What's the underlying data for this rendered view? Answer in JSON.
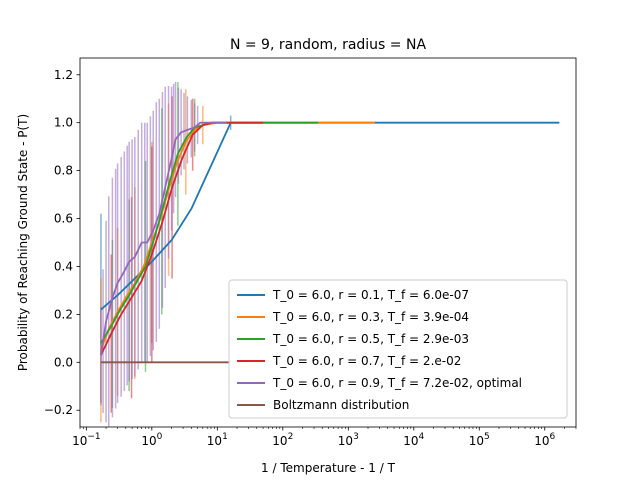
{
  "chart_data": {
    "type": "line",
    "title": "N = 9, random, radius = NA",
    "xlabel": "1 / Temperature - 1 / T",
    "ylabel": "Probability of Reaching Ground State - P(T)",
    "xscale": "log",
    "xlim": [
      0.08,
      3000000
    ],
    "ylim": [
      -0.27,
      1.27
    ],
    "x_ticks": [
      {
        "value": 0.1,
        "base": "10",
        "exp": "−1"
      },
      {
        "value": 1,
        "base": "10",
        "exp": "0"
      },
      {
        "value": 10,
        "base": "10",
        "exp": "1"
      },
      {
        "value": 100,
        "base": "10",
        "exp": "2"
      },
      {
        "value": 1000,
        "base": "10",
        "exp": "3"
      },
      {
        "value": 10000,
        "base": "10",
        "exp": "4"
      },
      {
        "value": 100000,
        "base": "10",
        "exp": "5"
      },
      {
        "value": 1000000,
        "base": "10",
        "exp": "6"
      }
    ],
    "y_ticks": [
      {
        "value": -0.2,
        "label": "−0.2"
      },
      {
        "value": 0.0,
        "label": "0.0"
      },
      {
        "value": 0.2,
        "label": "0.2"
      },
      {
        "value": 0.4,
        "label": "0.4"
      },
      {
        "value": 0.6,
        "label": "0.6"
      },
      {
        "value": 0.8,
        "label": "0.8"
      },
      {
        "value": 1.0,
        "label": "1.0"
      },
      {
        "value": 1.2,
        "label": "1.2"
      }
    ],
    "legend_position": "lower-right",
    "series": [
      {
        "name": "T_0 = 6.0, r = 0.1, T_f = 6.0e-07",
        "color": "#1f77b4",
        "x": [
          0.167,
          0.3,
          0.6,
          1,
          2,
          4,
          8,
          16,
          30,
          100,
          1000,
          10000,
          100000,
          1670000
        ],
        "y": [
          0.22,
          0.28,
          0.36,
          0.42,
          0.51,
          0.64,
          0.82,
          1.0,
          1.0,
          1.0,
          1.0,
          1.0,
          1.0,
          1.0
        ],
        "err_x": [
          0.167,
          16
        ],
        "err_half": [
          0.4,
          0.03
        ]
      },
      {
        "name": "T_0 = 6.0, r = 0.3, T_f = 3.9e-04",
        "color": "#ff7f0e",
        "x": [
          0.167,
          0.22,
          0.3,
          0.4,
          0.55,
          0.75,
          1,
          1.35,
          1.8,
          2.4,
          3.3,
          4.5,
          6,
          10,
          100,
          1000,
          2560
        ],
        "y": [
          0.05,
          0.14,
          0.21,
          0.27,
          0.33,
          0.4,
          0.5,
          0.6,
          0.72,
          0.83,
          0.92,
          0.97,
          0.99,
          1.0,
          1.0,
          1.0,
          1.0
        ],
        "err_x": [
          0.167,
          0.3,
          0.55,
          1,
          1.8,
          3.3,
          6
        ],
        "err_half": [
          0.3,
          0.35,
          0.4,
          0.42,
          0.36,
          0.22,
          0.08
        ]
      },
      {
        "name": "T_0 = 6.0, r = 0.5, T_f = 2.9e-03",
        "color": "#2ca02c",
        "x": [
          0.167,
          0.25,
          0.33,
          0.45,
          0.6,
          0.8,
          1.07,
          1.42,
          1.9,
          2.5,
          3.4,
          4.5,
          6,
          8,
          20,
          100,
          345
        ],
        "y": [
          0.08,
          0.16,
          0.22,
          0.28,
          0.34,
          0.4,
          0.51,
          0.63,
          0.76,
          0.87,
          0.94,
          0.98,
          0.99,
          1.0,
          1.0,
          1.0,
          1.0
        ],
        "err_x": [
          0.25,
          0.45,
          0.8,
          1.42,
          2.5,
          4.5
        ],
        "err_half": [
          0.35,
          0.4,
          0.44,
          0.43,
          0.3,
          0.12
        ]
      },
      {
        "name": "T_0 = 6.0, r = 0.7, T_f = 2.e-02",
        "color": "#d62728",
        "x": [
          0.167,
          0.24,
          0.34,
          0.49,
          0.7,
          1,
          1.43,
          2.04,
          2.9,
          4.2,
          6,
          8.5,
          12.2,
          17.4,
          50
        ],
        "y": [
          0.03,
          0.12,
          0.2,
          0.27,
          0.34,
          0.45,
          0.58,
          0.73,
          0.85,
          0.95,
          0.99,
          1.0,
          1.0,
          1.0,
          1.0
        ],
        "err_x": [
          0.24,
          0.49,
          1,
          2.04,
          4.2
        ],
        "err_half": [
          0.33,
          0.42,
          0.45,
          0.38,
          0.15
        ]
      },
      {
        "name": "T_0 = 6.0, r = 0.9, T_f = 7.2e-02, optimal",
        "color": "#9467bd",
        "x": [
          0.167,
          0.2,
          0.25,
          0.3,
          0.38,
          0.45,
          0.55,
          0.7,
          0.85,
          1.05,
          1.3,
          1.6,
          2,
          2.3,
          2.8,
          3.5,
          4.5,
          5.5,
          7,
          9,
          11,
          13.9
        ],
        "y": [
          0.03,
          0.17,
          0.27,
          0.33,
          0.38,
          0.42,
          0.44,
          0.5,
          0.5,
          0.55,
          0.62,
          0.73,
          0.85,
          0.93,
          0.96,
          0.97,
          0.98,
          1.0,
          1.0,
          1.0,
          1.0,
          1.0
        ],
        "err_x": [
          0.167,
          0.18,
          0.2,
          0.22,
          0.25,
          0.28,
          0.3,
          0.34,
          0.38,
          0.42,
          0.45,
          0.5,
          0.55,
          0.62,
          0.7,
          0.78,
          0.85,
          0.95,
          1.05,
          1.17,
          1.3,
          1.45,
          1.6,
          1.8,
          2,
          2.15,
          2.3,
          2.55,
          2.8,
          3.1,
          3.5,
          4,
          4.5,
          5
        ],
        "err_half": [
          0.2,
          0.3,
          0.42,
          0.48,
          0.5,
          0.5,
          0.5,
          0.5,
          0.5,
          0.5,
          0.5,
          0.5,
          0.5,
          0.5,
          0.5,
          0.5,
          0.5,
          0.5,
          0.5,
          0.5,
          0.48,
          0.45,
          0.42,
          0.36,
          0.3,
          0.27,
          0.24,
          0.2,
          0.18,
          0.16,
          0.14,
          0.12,
          0.1,
          0.08
        ]
      },
      {
        "name": "Boltzmann distribution",
        "color": "#8c564b",
        "x": [
          0.167,
          16
        ],
        "y": [
          0.0,
          0.0
        ]
      }
    ]
  }
}
